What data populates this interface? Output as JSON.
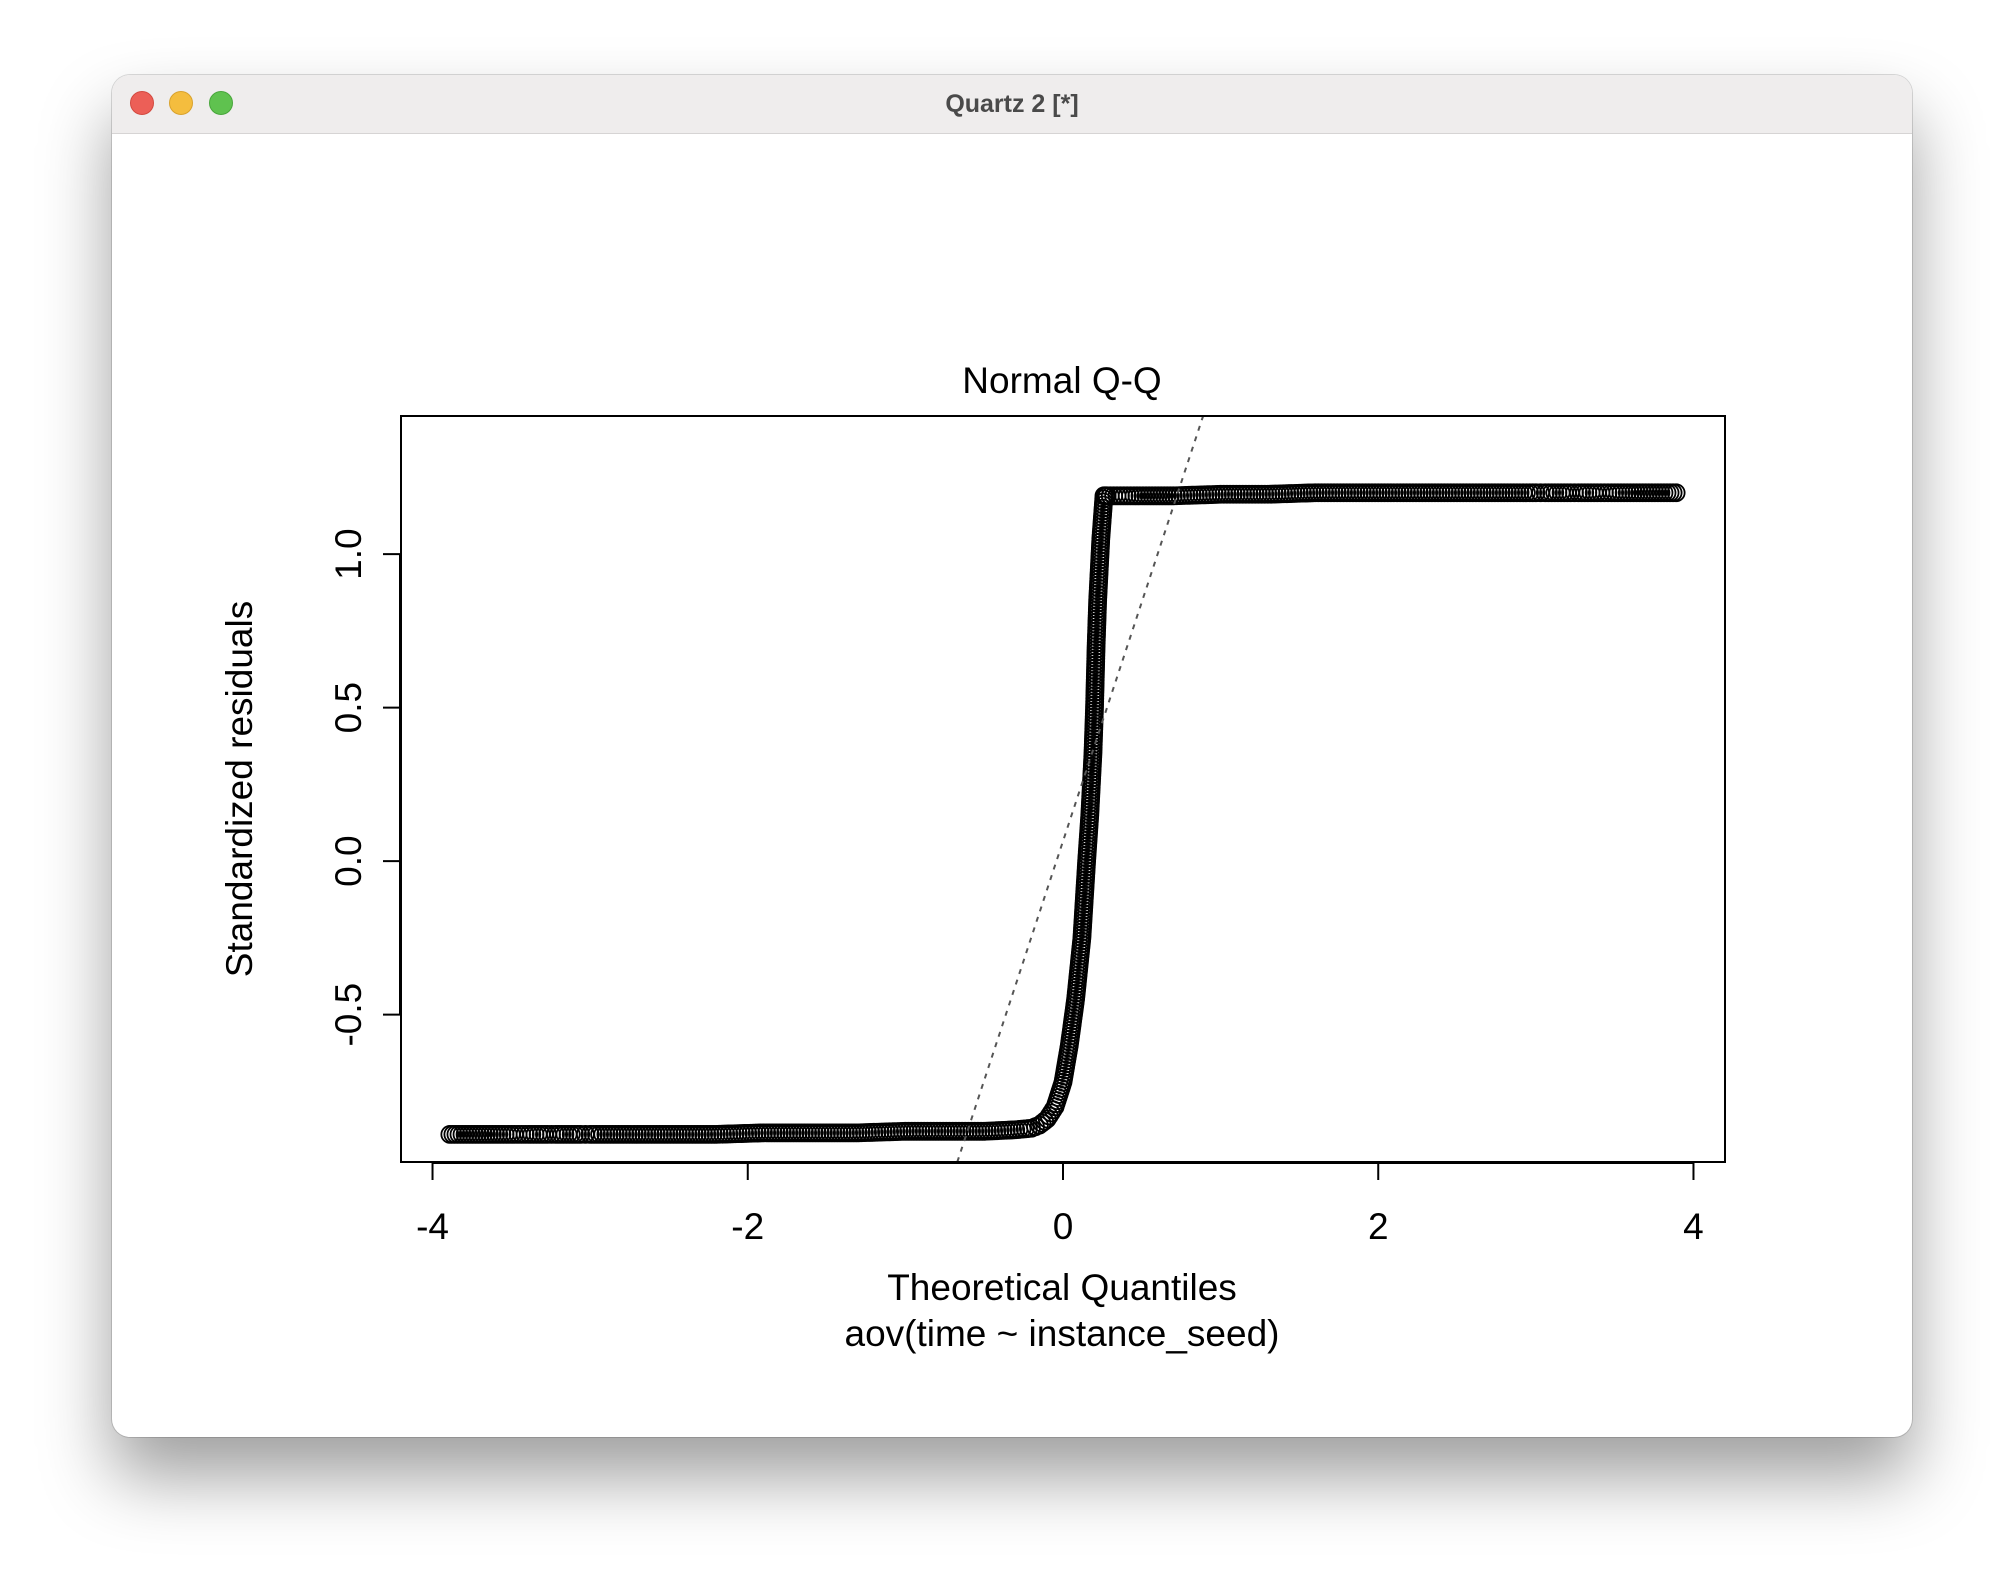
{
  "window": {
    "title": "Quartz 2 [*]"
  },
  "chart_data": {
    "type": "scatter",
    "title": "Normal Q-Q",
    "xlabel": "Theoretical Quantiles",
    "subtitle": "aov(time ~ instance_seed)",
    "ylabel": "Standardized residuals",
    "xlim": [
      -4.2,
      4.2
    ],
    "ylim": [
      -0.98,
      1.45
    ],
    "x_ticks": [
      -4,
      -2,
      0,
      2,
      4
    ],
    "x_tick_labels": [
      "-4",
      "-2",
      "0",
      "2",
      "4"
    ],
    "y_ticks": [
      -0.5,
      0.0,
      0.5,
      1.0
    ],
    "y_tick_labels": [
      "-0.5",
      "0.0",
      "0.5",
      "1.0"
    ],
    "reference_line": {
      "slope": 1.558,
      "intercept": 0.065
    },
    "series": [
      {
        "x": [
          -3.89,
          -3.62,
          -3.48,
          -3.39,
          -3.33,
          -3.27,
          -3.22,
          -3.18,
          -3.14,
          -3.1,
          -3.06,
          -3.03,
          -3.0,
          -2.9,
          -2.7,
          -2.5,
          -2.2,
          -1.9,
          -1.6,
          -1.3,
          -1.0,
          -0.7,
          -0.5,
          -0.3,
          -0.2,
          -0.15,
          -0.1,
          -0.05,
          0.0,
          0.04,
          0.08,
          0.12,
          0.15,
          0.17,
          0.19,
          0.2,
          0.21,
          0.22,
          0.23,
          0.235,
          0.24,
          0.25,
          0.26,
          0.27,
          0.28,
          0.3,
          0.45,
          0.7,
          1.0,
          1.3,
          1.6,
          1.9,
          2.2,
          2.5,
          2.7,
          2.9,
          3.0,
          3.03,
          3.06,
          3.1,
          3.14,
          3.18,
          3.22,
          3.27,
          3.33,
          3.39,
          3.48,
          3.62,
          3.89
        ],
        "y": [
          -0.89,
          -0.89,
          -0.89,
          -0.89,
          -0.89,
          -0.89,
          -0.89,
          -0.89,
          -0.89,
          -0.89,
          -0.89,
          -0.89,
          -0.89,
          -0.89,
          -0.89,
          -0.89,
          -0.89,
          -0.885,
          -0.885,
          -0.885,
          -0.88,
          -0.88,
          -0.88,
          -0.875,
          -0.87,
          -0.86,
          -0.84,
          -0.8,
          -0.72,
          -0.6,
          -0.45,
          -0.25,
          0.0,
          0.15,
          0.35,
          0.5,
          0.7,
          0.85,
          0.95,
          1.0,
          1.05,
          1.12,
          1.19,
          1.19,
          1.19,
          1.19,
          1.19,
          1.19,
          1.195,
          1.195,
          1.2,
          1.2,
          1.2,
          1.2,
          1.2,
          1.2,
          1.2,
          1.2,
          1.2,
          1.2,
          1.2,
          1.2,
          1.2,
          1.2,
          1.2,
          1.2,
          1.2,
          1.2,
          1.2
        ]
      }
    ]
  }
}
